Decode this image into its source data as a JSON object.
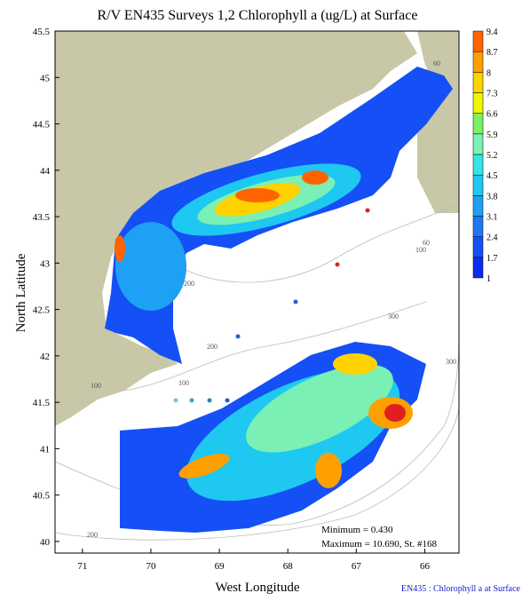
{
  "title": "R/V EN435 Surveys 1,2 Chlorophyll a (ug/L) at Surface",
  "x_label": "West Longitude",
  "y_label": "North Latitude",
  "xlim": [
    71.4,
    65.5
  ],
  "xticks": [
    71,
    70,
    69,
    68,
    67,
    66
  ],
  "ylim": [
    39.875,
    45.5
  ],
  "yticks": [
    40,
    40.5,
    41,
    41.5,
    42,
    42.5,
    43,
    43.5,
    44,
    44.5,
    45,
    45.5
  ],
  "colorbar": {
    "levels": [
      1,
      1.7,
      2.4,
      3.1,
      3.8,
      4.5,
      5.2,
      5.9,
      6.6,
      7.3,
      8,
      8.7,
      9.4
    ],
    "colors": [
      "#0a2cf0",
      "#1450f5",
      "#1e78f5",
      "#1ea0f5",
      "#1ec8f0",
      "#32e6e6",
      "#7af0b4",
      "#7cf064",
      "#f0f500",
      "#ffd200",
      "#ffa000",
      "#ff6400"
    ]
  },
  "contour_labels": [
    60,
    100,
    60,
    200,
    300,
    100,
    200,
    100,
    300,
    200
  ],
  "minimum": "Minimum = 0.430",
  "maximum": "Maximum = 10.690, St. #168",
  "footer": "EN435 : Chlorophyll a at Surface"
}
